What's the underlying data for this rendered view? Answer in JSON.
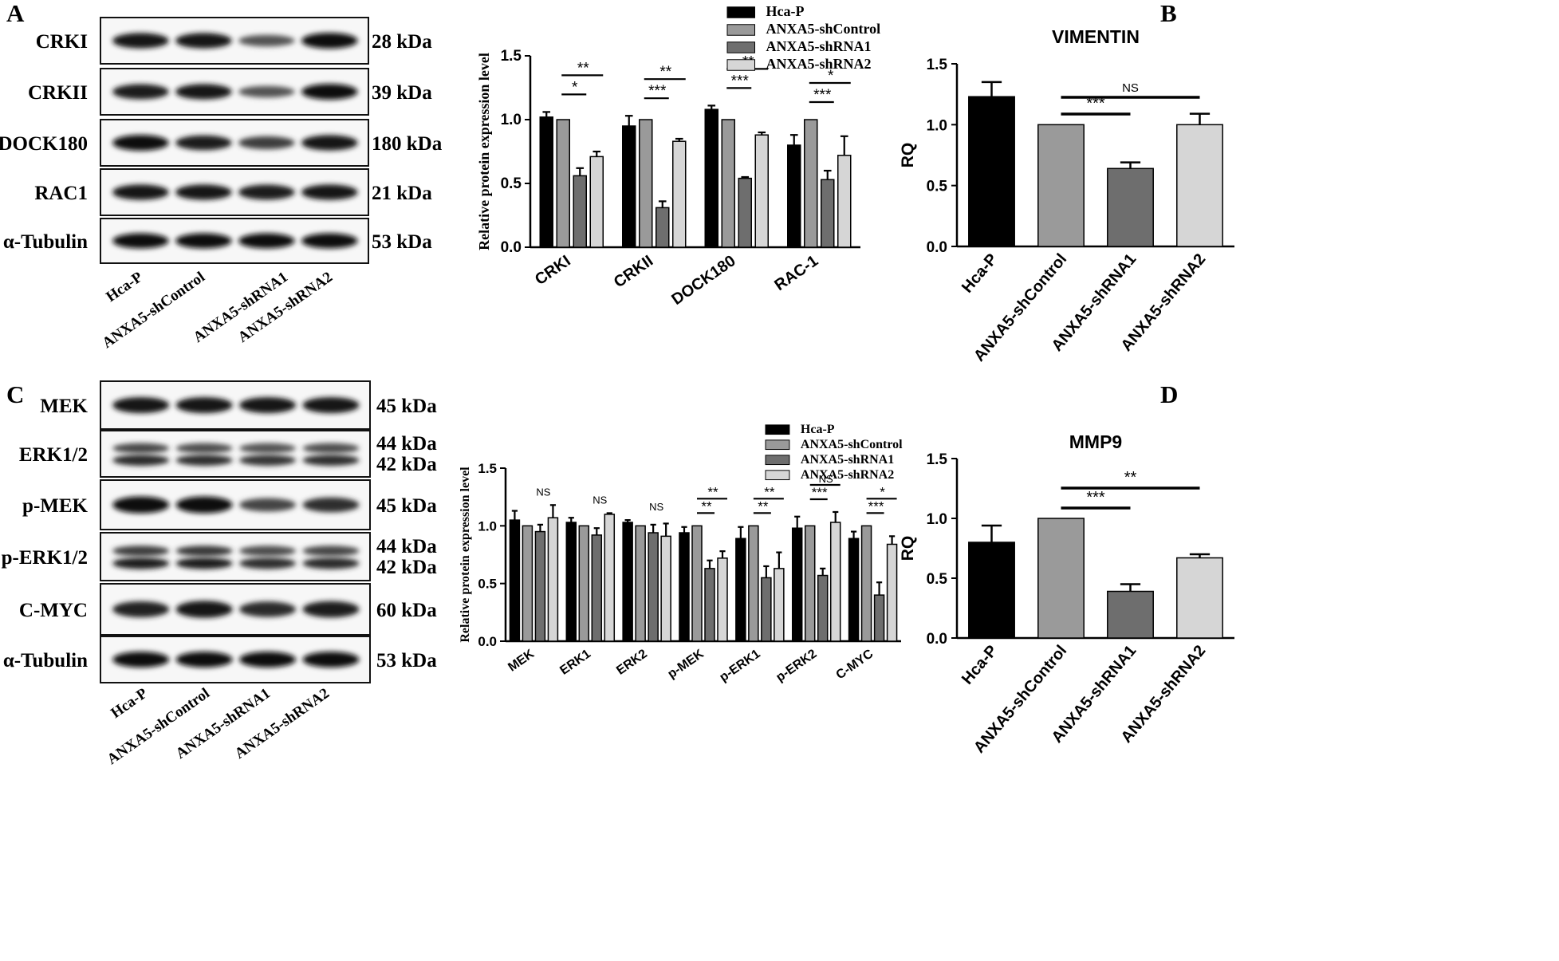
{
  "panels": {
    "A": "A",
    "B": "B",
    "C": "C",
    "D": "D"
  },
  "groups": [
    "Hca-P",
    "ANXA5-shControl",
    "ANXA5-shRNA1",
    "ANXA5-shRNA2"
  ],
  "colors": {
    "Hca-P": "#000000",
    "ANXA5-shControl": "#9a9a9a",
    "ANXA5-shRNA1": "#6e6e6e",
    "ANXA5-shRNA2": "#d6d6d6"
  },
  "blots": {
    "A": {
      "rows": [
        {
          "label": "CRKI",
          "kda": [
            "28 kDa"
          ],
          "intensity": [
            0.95,
            0.95,
            0.35,
            1.0
          ]
        },
        {
          "label": "CRKII",
          "kda": [
            "39 kDa"
          ],
          "intensity": [
            0.9,
            0.95,
            0.35,
            1.0
          ]
        },
        {
          "label": "DOCK180",
          "kda": [
            "180 kDa"
          ],
          "intensity": [
            1.0,
            0.85,
            0.55,
            0.95
          ]
        },
        {
          "label": "RAC1",
          "kda": [
            "21 kDa"
          ],
          "intensity": [
            0.95,
            0.95,
            0.9,
            0.95
          ]
        },
        {
          "label": "α-Tubulin",
          "kda": [
            "53 kDa"
          ],
          "intensity": [
            1.0,
            1.0,
            1.0,
            1.0
          ]
        }
      ]
    },
    "C": {
      "rows": [
        {
          "label": "MEK",
          "kda": [
            "45 kDa"
          ],
          "intensity": [
            0.95,
            0.95,
            0.95,
            0.95
          ]
        },
        {
          "label": "ERK1/2",
          "kda": [
            "44 kDa",
            "42 kDa"
          ],
          "intensity": [
            0.75,
            0.7,
            0.65,
            0.7
          ]
        },
        {
          "label": "p-MEK",
          "kda": [
            "45 kDa"
          ],
          "intensity": [
            1.0,
            1.0,
            0.5,
            0.7
          ]
        },
        {
          "label": "p-ERK1/2",
          "kda": [
            "44 kDa",
            "42 kDa"
          ],
          "intensity": [
            0.85,
            0.9,
            0.7,
            0.75
          ]
        },
        {
          "label": "C-MYC",
          "kda": [
            "60 kDa"
          ],
          "intensity": [
            0.8,
            0.95,
            0.75,
            0.85
          ]
        },
        {
          "label": "α-Tubulin",
          "kda": [
            "53 kDa"
          ],
          "intensity": [
            1.0,
            1.0,
            1.0,
            1.0
          ]
        }
      ]
    }
  },
  "chart_data": [
    {
      "id": "A-bar",
      "type": "bar",
      "ylabel": "Relative protein expression level",
      "ylim": [
        0,
        1.5
      ],
      "yticks": [
        "0.0",
        "0.5",
        "1.0",
        "1.5"
      ],
      "legend_position": "top-right",
      "categories": [
        "CRKI",
        "CRKII",
        "DOCK180",
        "RAC-1"
      ],
      "series": [
        {
          "name": "Hca-P",
          "values": [
            1.02,
            0.95,
            1.08,
            0.8
          ],
          "errors": [
            0.04,
            0.08,
            0.03,
            0.08
          ]
        },
        {
          "name": "ANXA5-shControl",
          "values": [
            1.0,
            1.0,
            1.0,
            1.0
          ],
          "errors": [
            0,
            0,
            0,
            0
          ]
        },
        {
          "name": "ANXA5-shRNA1",
          "values": [
            0.56,
            0.31,
            0.54,
            0.53
          ],
          "errors": [
            0.06,
            0.05,
            0.01,
            0.07
          ]
        },
        {
          "name": "ANXA5-shRNA2",
          "values": [
            0.71,
            0.83,
            0.88,
            0.72
          ],
          "errors": [
            0.04,
            0.02,
            0.02,
            0.15
          ]
        }
      ],
      "annotations": [
        {
          "category": 0,
          "from": 1,
          "to": 2,
          "label": "*"
        },
        {
          "category": 0,
          "from": 1,
          "to": 3,
          "label": "**"
        },
        {
          "category": 1,
          "from": 1,
          "to": 2,
          "label": "***"
        },
        {
          "category": 1,
          "from": 1,
          "to": 3,
          "label": "**"
        },
        {
          "category": 2,
          "from": 1,
          "to": 2,
          "label": "***"
        },
        {
          "category": 2,
          "from": 1,
          "to": 3,
          "label": "**"
        },
        {
          "category": 3,
          "from": 1,
          "to": 2,
          "label": "***"
        },
        {
          "category": 3,
          "from": 1,
          "to": 3,
          "label": "*"
        }
      ]
    },
    {
      "id": "B-bar",
      "type": "bar",
      "title": "VIMENTIN",
      "ylabel": "RQ",
      "ylim": [
        0,
        1.5
      ],
      "yticks": [
        "0.0",
        "0.5",
        "1.0",
        "1.5"
      ],
      "categories": [
        "Hca-P",
        "ANXA5-shControl",
        "ANXA5-shRNA1",
        "ANXA5-shRNA2"
      ],
      "values": [
        1.23,
        1.0,
        0.64,
        1.0
      ],
      "errors": [
        0.12,
        0,
        0.05,
        0.09
      ],
      "annotations": [
        {
          "from": 1,
          "to": 2,
          "label": "***"
        },
        {
          "from": 1,
          "to": 3,
          "label": "NS"
        }
      ]
    },
    {
      "id": "C-bar",
      "type": "bar",
      "ylabel": "Relative protein expression level",
      "ylim": [
        0,
        1.5
      ],
      "yticks": [
        "0.0",
        "0.5",
        "1.0",
        "1.5"
      ],
      "legend_position": "top-right",
      "categories": [
        "MEK",
        "ERK1",
        "ERK2",
        "p-MEK",
        "p-ERK1",
        "p-ERK2",
        "C-MYC"
      ],
      "series": [
        {
          "name": "Hca-P",
          "values": [
            1.05,
            1.03,
            1.03,
            0.94,
            0.89,
            0.98,
            0.89
          ],
          "errors": [
            0.08,
            0.04,
            0.02,
            0.05,
            0.1,
            0.1,
            0.06
          ]
        },
        {
          "name": "ANXA5-shControl",
          "values": [
            1.0,
            1.0,
            1.0,
            1.0,
            1.0,
            1.0,
            1.0
          ],
          "errors": [
            0,
            0,
            0,
            0,
            0,
            0,
            0
          ]
        },
        {
          "name": "ANXA5-shRNA1",
          "values": [
            0.95,
            0.92,
            0.94,
            0.63,
            0.55,
            0.57,
            0.4
          ],
          "errors": [
            0.06,
            0.06,
            0.07,
            0.07,
            0.1,
            0.06,
            0.11
          ]
        },
        {
          "name": "ANXA5-shRNA2",
          "values": [
            1.07,
            1.1,
            0.91,
            0.72,
            0.63,
            1.03,
            0.84
          ],
          "errors": [
            0.11,
            0.01,
            0.11,
            0.06,
            0.14,
            0.09,
            0.07
          ]
        }
      ],
      "annotations": [
        {
          "category": 0,
          "from": 1,
          "to": 3,
          "label": "NS",
          "line": false
        },
        {
          "category": 1,
          "from": 1,
          "to": 3,
          "label": "NS",
          "line": false
        },
        {
          "category": 2,
          "from": 1,
          "to": 3,
          "label": "NS",
          "line": false
        },
        {
          "category": 3,
          "from": 1,
          "to": 2,
          "label": "**"
        },
        {
          "category": 3,
          "from": 1,
          "to": 3,
          "label": "**"
        },
        {
          "category": 4,
          "from": 1,
          "to": 2,
          "label": "**"
        },
        {
          "category": 4,
          "from": 1,
          "to": 3,
          "label": "**"
        },
        {
          "category": 5,
          "from": 1,
          "to": 2,
          "label": "***"
        },
        {
          "category": 5,
          "from": 1,
          "to": 3,
          "label": "NS"
        },
        {
          "category": 6,
          "from": 1,
          "to": 2,
          "label": "***"
        },
        {
          "category": 6,
          "from": 1,
          "to": 3,
          "label": "*"
        }
      ]
    },
    {
      "id": "D-bar",
      "type": "bar",
      "title": "MMP9",
      "ylabel": "RQ",
      "ylim": [
        0,
        1.5
      ],
      "yticks": [
        "0.0",
        "0.5",
        "1.0",
        "1.5"
      ],
      "categories": [
        "Hca-P",
        "ANXA5-shControl",
        "ANXA5-shRNA1",
        "ANXA5-shRNA2"
      ],
      "values": [
        0.8,
        1.0,
        0.39,
        0.67
      ],
      "errors": [
        0.14,
        0,
        0.06,
        0.03
      ],
      "annotations": [
        {
          "from": 1,
          "to": 2,
          "label": "***"
        },
        {
          "from": 1,
          "to": 3,
          "label": "**"
        }
      ]
    }
  ]
}
